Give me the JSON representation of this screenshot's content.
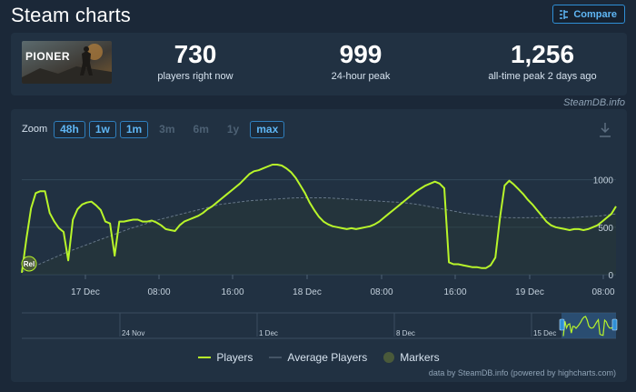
{
  "header": {
    "title": "Steam charts",
    "compare_label": "Compare"
  },
  "stats": [
    {
      "value": "730",
      "label": "players right now"
    },
    {
      "value": "999",
      "label": "24-hour peak"
    },
    {
      "value": "1,256",
      "label": "all-time peak 2 days ago"
    }
  ],
  "game": {
    "thumb_text": "PIONER"
  },
  "credit_top": "SteamDB.info",
  "zoom": {
    "label": "Zoom",
    "options": [
      {
        "label": "48h",
        "active": true
      },
      {
        "label": "1w",
        "active": true
      },
      {
        "label": "1m",
        "active": true
      },
      {
        "label": "3m",
        "active": false
      },
      {
        "label": "6m",
        "active": false
      },
      {
        "label": "1y",
        "active": false
      },
      {
        "label": "max",
        "active": true
      }
    ]
  },
  "chart_data": {
    "type": "line",
    "x_ticks": [
      "17 Dec",
      "08:00",
      "16:00",
      "18 Dec",
      "08:00",
      "16:00",
      "19 Dec",
      "08:00"
    ],
    "y_ticks": [
      "0",
      "500",
      "1000"
    ],
    "ylim": [
      0,
      1150
    ],
    "grid": true,
    "marker": {
      "label": "Rel"
    },
    "series": [
      {
        "name": "Players",
        "color": "#b8f52a",
        "values": [
          20,
          380,
          700,
          860,
          880,
          880,
          650,
          560,
          490,
          450,
          150,
          580,
          690,
          740,
          760,
          770,
          730,
          680,
          560,
          540,
          200,
          560,
          560,
          570,
          580,
          580,
          560,
          560,
          570,
          550,
          520,
          480,
          470,
          460,
          520,
          560,
          580,
          600,
          620,
          650,
          690,
          720,
          760,
          800,
          840,
          880,
          920,
          960,
          1010,
          1060,
          1090,
          1100,
          1120,
          1140,
          1160,
          1160,
          1150,
          1120,
          1080,
          1020,
          940,
          860,
          760,
          680,
          610,
          560,
          530,
          510,
          500,
          490,
          480,
          490,
          480,
          490,
          500,
          510,
          530,
          560,
          600,
          640,
          680,
          720,
          760,
          800,
          840,
          880,
          910,
          940,
          960,
          980,
          960,
          910,
          130,
          110,
          110,
          100,
          90,
          80,
          80,
          70,
          70,
          100,
          180,
          600,
          940,
          990,
          950,
          900,
          850,
          790,
          740,
          680,
          620,
          560,
          520,
          500,
          490,
          480,
          470,
          480,
          480,
          470,
          480,
          500,
          520,
          560,
          600,
          640,
          720
        ]
      },
      {
        "name": "Average Players",
        "color": "#667788",
        "values": [
          30,
          100,
          170,
          240,
          300,
          360,
          420,
          480,
          530,
          580,
          620,
          660,
          700,
          740,
          760,
          780,
          790,
          800,
          810,
          810,
          810,
          800,
          790,
          780,
          770,
          760,
          740,
          710,
          680,
          650,
          630,
          610,
          600,
          600,
          600,
          600,
          600,
          610,
          620,
          640
        ]
      }
    ]
  },
  "navigator": {
    "labels": [
      "24 Nov",
      "1 Dec",
      "8 Dec",
      "15 Dec"
    ]
  },
  "legend": {
    "players": "Players",
    "average": "Average Players",
    "markers": "Markers"
  },
  "credit_bottom": "data by SteamDB.info (powered by highcharts.com)"
}
